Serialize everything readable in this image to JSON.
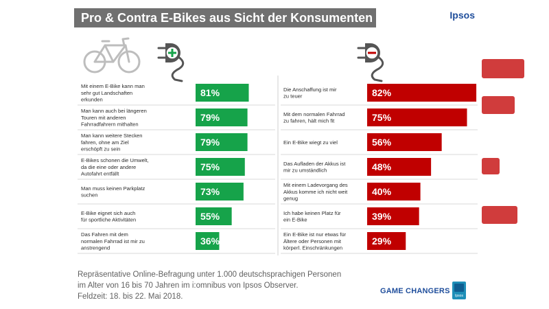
{
  "title": "Pro & Contra E-Bikes aus Sicht der Konsumenten",
  "brand": "Ipsos",
  "colors": {
    "pro": "#16a34a",
    "contra": "#c00000",
    "title_bg": "#707070",
    "brand_blue": "#1e4d9b"
  },
  "icons": {
    "bike": "bicycle-icon",
    "pro": "plug-plus-icon",
    "contra": "plug-minus-icon"
  },
  "chart_data": [
    {
      "type": "bar",
      "orientation": "horizontal",
      "series_name": "Pro",
      "categories": [
        [
          "Mit einem E-Bike kann man",
          "sehr gut Landschaften",
          "erkunden"
        ],
        [
          "Man kann auch bei längeren",
          "Touren mit anderen",
          "Fahrradfahrern mithalten"
        ],
        [
          "Man kann weitere Stecken",
          "fahren, ohne am Ziel",
          "erschöpft zu sein"
        ],
        [
          "E-Bikes schonen die Umwelt,",
          "da die eine oder andere",
          "Autofahrt entfällt"
        ],
        [
          "Man muss keinen Parkplatz",
          "suchen"
        ],
        [
          "E-Bike eignet sich auch",
          "für sportliche Aktivitäten"
        ],
        [
          "Das Fahren mit dem",
          "normalen Fahrrad ist mir zu",
          "anstrengend"
        ]
      ],
      "values": [
        81,
        79,
        79,
        75,
        73,
        55,
        36
      ],
      "value_labels": [
        "81%",
        "79%",
        "79%",
        "75%",
        "73%",
        "55%",
        "36%"
      ],
      "xlim": [
        0,
        100
      ]
    },
    {
      "type": "bar",
      "orientation": "horizontal",
      "series_name": "Contra",
      "categories": [
        [
          "Die Anschaffung ist mir",
          "zu teuer"
        ],
        [
          "Mit dem normalen Fahrrad",
          "zu fahren, hält mich fit"
        ],
        [
          "Ein E-Bike wiegt zu viel"
        ],
        [
          "Das Aufladen der Akkus ist",
          "mir zu umständlich"
        ],
        [
          "Mit einem Ladevorgang des",
          "Akkus komme  ich nicht weit",
          "genug"
        ],
        [
          "Ich habe keinen Platz für",
          "ein E-Bike"
        ],
        [
          "Ein E-Bike ist nur etwas für",
          "Ältere oder Personen mit",
          "körperl. Einschränkungen"
        ]
      ],
      "values": [
        82,
        75,
        56,
        48,
        40,
        39,
        29
      ],
      "value_labels": [
        "82%",
        "75%",
        "56%",
        "48%",
        "40%",
        "39%",
        "29%"
      ],
      "xlim": [
        0,
        100
      ]
    }
  ],
  "footer": {
    "lines": [
      "Repräsentative Online-Befragung  unter 1.000 deutschsprachigen  Personen",
      "im Alter von 16 bis 70 Jahren im i:omnibus von Ipsos Observer.",
      "Feldzeit: 18. bis 22. Mai 2018."
    ],
    "tagline": "GAME CHANGERS",
    "logo_text": "Ipsos"
  }
}
